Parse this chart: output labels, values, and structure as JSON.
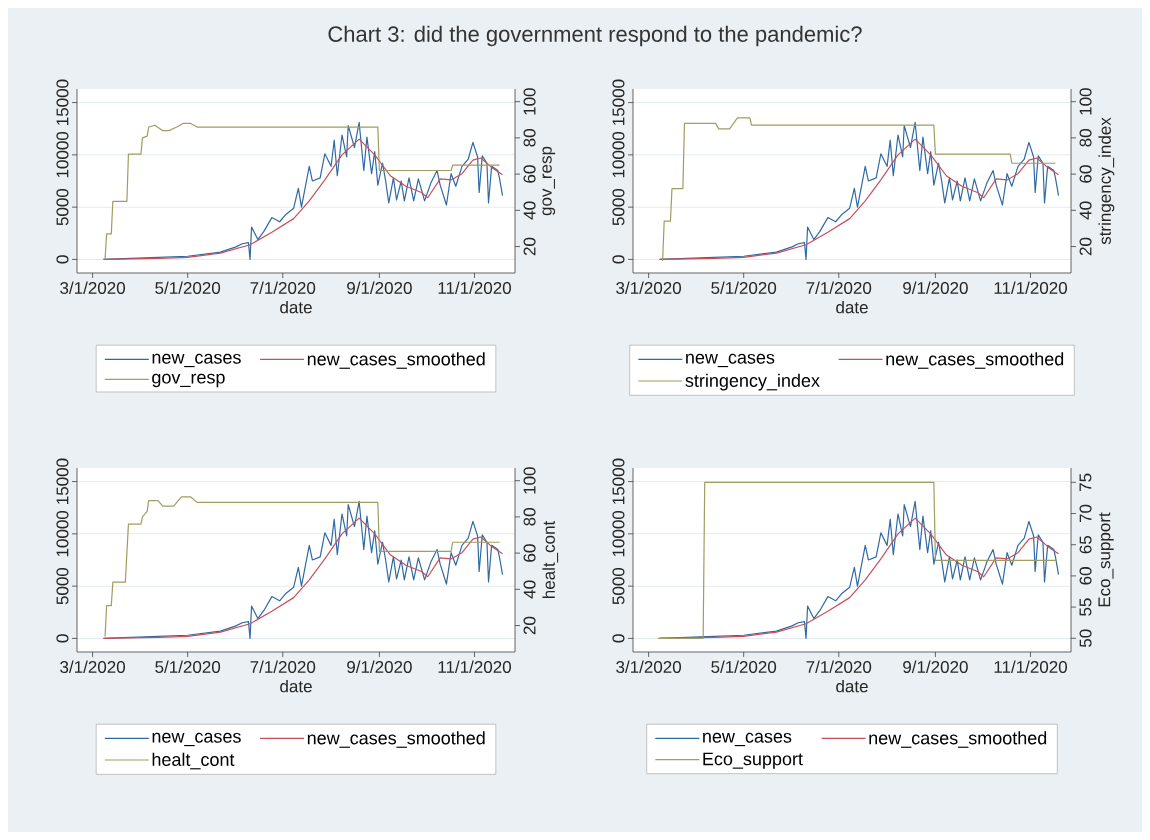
{
  "chart_data": [
    {
      "type": "line",
      "title": "Chart 3: did the government respond to the pandemic?",
      "xlabel": "date",
      "y2label": "gov_resp",
      "xlim": [
        "2020-02-20",
        "2020-11-27"
      ],
      "xticks": [
        {
          "value": "2020-03-01",
          "label": "3/1/2020"
        },
        {
          "value": "2020-05-01",
          "label": "5/1/2020"
        },
        {
          "value": "2020-07-01",
          "label": "7/1/2020"
        },
        {
          "value": "2020-09-01",
          "label": "9/1/2020"
        },
        {
          "value": "2020-11-01",
          "label": "11/1/2020"
        }
      ],
      "ylim": [
        -1300,
        16300
      ],
      "yticks": [
        0,
        5000,
        10000,
        15000
      ],
      "y2lim": [
        5.4,
        107
      ],
      "y2ticks": [
        20,
        40,
        60,
        80,
        100
      ],
      "grid": "y",
      "legend": "bottom",
      "series": [
        {
          "name": "new_cases",
          "color": "#2f6aa3",
          "x": [
            "2020-03-08",
            "2020-04-12",
            "2020-05-01",
            "2020-05-22",
            "2020-06-01",
            "2020-06-05",
            "2020-06-09",
            "2020-06-10",
            "2020-06-11",
            "2020-06-15",
            "2020-06-19",
            "2020-06-24",
            "2020-06-29",
            "2020-07-03",
            "2020-07-08",
            "2020-07-11",
            "2020-07-13",
            "2020-07-18",
            "2020-07-20",
            "2020-07-25",
            "2020-07-28",
            "2020-08-01",
            "2020-08-03",
            "2020-08-05",
            "2020-08-08",
            "2020-08-11",
            "2020-08-12",
            "2020-08-16",
            "2020-08-19",
            "2020-08-22",
            "2020-08-24",
            "2020-08-27",
            "2020-08-29",
            "2020-08-31",
            "2020-09-03",
            "2020-09-05",
            "2020-09-07",
            "2020-09-10",
            "2020-09-12",
            "2020-09-15",
            "2020-09-17",
            "2020-09-20",
            "2020-09-23",
            "2020-09-26",
            "2020-09-30",
            "2020-10-04",
            "2020-10-08",
            "2020-10-10",
            "2020-10-14",
            "2020-10-17",
            "2020-10-20",
            "2020-10-24",
            "2020-10-28",
            "2020-10-31",
            "2020-11-03",
            "2020-11-04",
            "2020-11-06",
            "2020-11-09",
            "2020-11-10",
            "2020-11-12",
            "2020-11-16",
            "2020-11-17",
            "2020-11-19"
          ],
          "values": [
            0,
            200,
            300,
            700,
            1200,
            1500,
            1600,
            0,
            3100,
            1900,
            2700,
            4000,
            3600,
            4300,
            4900,
            6800,
            5000,
            8900,
            7500,
            7800,
            10100,
            8900,
            11400,
            8000,
            11900,
            9800,
            12800,
            10700,
            13100,
            8500,
            11700,
            8200,
            10300,
            7100,
            9200,
            7500,
            5400,
            7800,
            5700,
            7500,
            5600,
            7800,
            5600,
            7700,
            5600,
            7300,
            8500,
            7100,
            5200,
            8200,
            7000,
            8900,
            9600,
            11200,
            9800,
            6400,
            9900,
            9200,
            5400,
            8900,
            8500,
            7800,
            6100
          ]
        },
        {
          "name": "new_cases_smoothed",
          "color": "#c4505c",
          "x": [
            "2020-03-08",
            "2020-04-12",
            "2020-05-01",
            "2020-05-22",
            "2020-06-10",
            "2020-06-24",
            "2020-07-08",
            "2020-07-18",
            "2020-07-28",
            "2020-08-08",
            "2020-08-19",
            "2020-08-29",
            "2020-09-08",
            "2020-09-18",
            "2020-09-28",
            "2020-10-02",
            "2020-10-10",
            "2020-10-17",
            "2020-10-24",
            "2020-10-31",
            "2020-11-05",
            "2020-11-12",
            "2020-11-19"
          ],
          "values": [
            0,
            100,
            200,
            600,
            1400,
            2600,
            3900,
            5600,
            7600,
            10000,
            11500,
            10000,
            8000,
            7000,
            6400,
            5900,
            7700,
            7600,
            8200,
            9500,
            9700,
            8800,
            8100
          ]
        },
        {
          "name": "gov_resp",
          "color": "#a09c62",
          "axis": "y2",
          "x": [
            "2020-03-09",
            "2020-03-10",
            "2020-03-13",
            "2020-03-14",
            "2020-03-23",
            "2020-03-24",
            "2020-04-01",
            "2020-04-02",
            "2020-04-05",
            "2020-04-06",
            "2020-04-10",
            "2020-04-15",
            "2020-04-19",
            "2020-04-24",
            "2020-04-28",
            "2020-05-03",
            "2020-05-07",
            "2020-08-31",
            "2020-09-01",
            "2020-10-17",
            "2020-10-18",
            "2020-11-17"
          ],
          "values": [
            13,
            27,
            27,
            45,
            45,
            71,
            71,
            80,
            81,
            86,
            87,
            84,
            84,
            86,
            88,
            88,
            86,
            86,
            62,
            62,
            65,
            65
          ]
        }
      ]
    },
    {
      "type": "line",
      "xlabel": "date",
      "y2label": "stringency_index",
      "xlim": [
        "2020-02-20",
        "2020-11-27"
      ],
      "xticks": [
        {
          "value": "2020-03-01",
          "label": "3/1/2020"
        },
        {
          "value": "2020-05-01",
          "label": "5/1/2020"
        },
        {
          "value": "2020-07-01",
          "label": "7/1/2020"
        },
        {
          "value": "2020-09-01",
          "label": "9/1/2020"
        },
        {
          "value": "2020-11-01",
          "label": "11/1/2020"
        }
      ],
      "ylim": [
        -1300,
        16300
      ],
      "yticks": [
        0,
        5000,
        10000,
        15000
      ],
      "y2lim": [
        5.4,
        107
      ],
      "y2ticks": [
        20,
        40,
        60,
        80,
        100
      ],
      "grid": "y",
      "legend": "bottom",
      "series": [
        {
          "name": "new_cases",
          "color": "#2f6aa3",
          "x": [
            "2020-03-08",
            "2020-04-12",
            "2020-05-01",
            "2020-05-22",
            "2020-06-01",
            "2020-06-05",
            "2020-06-09",
            "2020-06-10",
            "2020-06-11",
            "2020-06-15",
            "2020-06-19",
            "2020-06-24",
            "2020-06-29",
            "2020-07-03",
            "2020-07-08",
            "2020-07-11",
            "2020-07-13",
            "2020-07-18",
            "2020-07-20",
            "2020-07-25",
            "2020-07-28",
            "2020-08-01",
            "2020-08-03",
            "2020-08-05",
            "2020-08-08",
            "2020-08-11",
            "2020-08-12",
            "2020-08-16",
            "2020-08-19",
            "2020-08-22",
            "2020-08-24",
            "2020-08-27",
            "2020-08-29",
            "2020-08-31",
            "2020-09-03",
            "2020-09-05",
            "2020-09-07",
            "2020-09-10",
            "2020-09-12",
            "2020-09-15",
            "2020-09-17",
            "2020-09-20",
            "2020-09-23",
            "2020-09-26",
            "2020-09-30",
            "2020-10-04",
            "2020-10-08",
            "2020-10-10",
            "2020-10-14",
            "2020-10-17",
            "2020-10-20",
            "2020-10-24",
            "2020-10-28",
            "2020-10-31",
            "2020-11-03",
            "2020-11-04",
            "2020-11-06",
            "2020-11-09",
            "2020-11-10",
            "2020-11-12",
            "2020-11-16",
            "2020-11-17",
            "2020-11-19"
          ],
          "values": [
            0,
            200,
            300,
            700,
            1200,
            1500,
            1600,
            0,
            3100,
            1900,
            2700,
            4000,
            3600,
            4300,
            4900,
            6800,
            5000,
            8900,
            7500,
            7800,
            10100,
            8900,
            11400,
            8000,
            11900,
            9800,
            12800,
            10700,
            13100,
            8500,
            11700,
            8200,
            10300,
            7100,
            9200,
            7500,
            5400,
            7800,
            5700,
            7500,
            5600,
            7800,
            5600,
            7700,
            5600,
            7300,
            8500,
            7100,
            5200,
            8200,
            7000,
            8900,
            9600,
            11200,
            9800,
            6400,
            9900,
            9200,
            5400,
            8900,
            8500,
            7800,
            6100
          ]
        },
        {
          "name": "new_cases_smoothed",
          "color": "#c4505c",
          "x": [
            "2020-03-08",
            "2020-04-12",
            "2020-05-01",
            "2020-05-22",
            "2020-06-10",
            "2020-06-24",
            "2020-07-08",
            "2020-07-18",
            "2020-07-28",
            "2020-08-08",
            "2020-08-19",
            "2020-08-29",
            "2020-09-08",
            "2020-09-18",
            "2020-09-28",
            "2020-10-02",
            "2020-10-10",
            "2020-10-17",
            "2020-10-24",
            "2020-10-31",
            "2020-11-05",
            "2020-11-12",
            "2020-11-19"
          ],
          "values": [
            0,
            100,
            200,
            600,
            1400,
            2600,
            3900,
            5600,
            7600,
            10000,
            11500,
            10000,
            8000,
            7000,
            6400,
            5900,
            7700,
            7600,
            8200,
            9500,
            9700,
            8800,
            8100
          ]
        },
        {
          "name": "stringency_index",
          "color": "#a09c62",
          "axis": "y2",
          "x": [
            "2020-03-10",
            "2020-03-11",
            "2020-03-15",
            "2020-03-16",
            "2020-03-23",
            "2020-03-24",
            "2020-04-13",
            "2020-04-15",
            "2020-04-22",
            "2020-04-27",
            "2020-05-05",
            "2020-05-06",
            "2020-08-31",
            "2020-09-01",
            "2020-10-19",
            "2020-10-20",
            "2020-11-17"
          ],
          "values": [
            12,
            34,
            34,
            52,
            52,
            88,
            88,
            85,
            85,
            91,
            91,
            87,
            87,
            71,
            71,
            66,
            66
          ]
        }
      ]
    },
    {
      "type": "line",
      "xlabel": "date",
      "y2label": "healt_cont",
      "xlim": [
        "2020-02-20",
        "2020-11-27"
      ],
      "xticks": [
        {
          "value": "2020-03-01",
          "label": "3/1/2020"
        },
        {
          "value": "2020-05-01",
          "label": "5/1/2020"
        },
        {
          "value": "2020-07-01",
          "label": "7/1/2020"
        },
        {
          "value": "2020-09-01",
          "label": "9/1/2020"
        },
        {
          "value": "2020-11-01",
          "label": "11/1/2020"
        }
      ],
      "ylim": [
        -1300,
        16300
      ],
      "yticks": [
        0,
        5000,
        10000,
        15000
      ],
      "y2lim": [
        5.4,
        107
      ],
      "y2ticks": [
        20,
        40,
        60,
        80,
        100
      ],
      "grid": "y",
      "legend": "bottom",
      "series": [
        {
          "name": "new_cases",
          "color": "#2f6aa3",
          "x": [
            "2020-03-08",
            "2020-04-12",
            "2020-05-01",
            "2020-05-22",
            "2020-06-01",
            "2020-06-05",
            "2020-06-09",
            "2020-06-10",
            "2020-06-11",
            "2020-06-15",
            "2020-06-19",
            "2020-06-24",
            "2020-06-29",
            "2020-07-03",
            "2020-07-08",
            "2020-07-11",
            "2020-07-13",
            "2020-07-18",
            "2020-07-20",
            "2020-07-25",
            "2020-07-28",
            "2020-08-01",
            "2020-08-03",
            "2020-08-05",
            "2020-08-08",
            "2020-08-11",
            "2020-08-12",
            "2020-08-16",
            "2020-08-19",
            "2020-08-22",
            "2020-08-24",
            "2020-08-27",
            "2020-08-29",
            "2020-08-31",
            "2020-09-03",
            "2020-09-05",
            "2020-09-07",
            "2020-09-10",
            "2020-09-12",
            "2020-09-15",
            "2020-09-17",
            "2020-09-20",
            "2020-09-23",
            "2020-09-26",
            "2020-09-30",
            "2020-10-04",
            "2020-10-08",
            "2020-10-10",
            "2020-10-14",
            "2020-10-17",
            "2020-10-20",
            "2020-10-24",
            "2020-10-28",
            "2020-10-31",
            "2020-11-03",
            "2020-11-04",
            "2020-11-06",
            "2020-11-09",
            "2020-11-10",
            "2020-11-12",
            "2020-11-16",
            "2020-11-17",
            "2020-11-19"
          ],
          "values": [
            0,
            200,
            300,
            700,
            1200,
            1500,
            1600,
            0,
            3100,
            1900,
            2700,
            4000,
            3600,
            4300,
            4900,
            6800,
            5000,
            8900,
            7500,
            7800,
            10100,
            8900,
            11400,
            8000,
            11900,
            9800,
            12800,
            10700,
            13100,
            8500,
            11700,
            8200,
            10300,
            7100,
            9200,
            7500,
            5400,
            7800,
            5700,
            7500,
            5600,
            7800,
            5600,
            7700,
            5600,
            7300,
            8500,
            7100,
            5200,
            8200,
            7000,
            8900,
            9600,
            11200,
            9800,
            6400,
            9900,
            9200,
            5400,
            8900,
            8500,
            7800,
            6100
          ]
        },
        {
          "name": "new_cases_smoothed",
          "color": "#c4505c",
          "x": [
            "2020-03-08",
            "2020-04-12",
            "2020-05-01",
            "2020-05-22",
            "2020-06-10",
            "2020-06-24",
            "2020-07-08",
            "2020-07-18",
            "2020-07-28",
            "2020-08-08",
            "2020-08-19",
            "2020-08-29",
            "2020-09-08",
            "2020-09-18",
            "2020-09-28",
            "2020-10-02",
            "2020-10-10",
            "2020-10-17",
            "2020-10-24",
            "2020-10-31",
            "2020-11-05",
            "2020-11-12",
            "2020-11-19"
          ],
          "values": [
            0,
            100,
            200,
            600,
            1400,
            2600,
            3900,
            5600,
            7600,
            10000,
            11500,
            10000,
            8000,
            7000,
            6400,
            5900,
            7700,
            7600,
            8200,
            9500,
            9700,
            8800,
            8100
          ]
        },
        {
          "name": "healt_cont",
          "color": "#a09c62",
          "axis": "y2",
          "x": [
            "2020-03-09",
            "2020-03-10",
            "2020-03-13",
            "2020-03-14",
            "2020-03-22",
            "2020-03-24",
            "2020-04-01",
            "2020-04-02",
            "2020-04-05",
            "2020-04-06",
            "2020-04-12",
            "2020-04-15",
            "2020-04-22",
            "2020-04-27",
            "2020-05-03",
            "2020-05-07",
            "2020-08-31",
            "2020-09-01",
            "2020-10-17",
            "2020-10-18",
            "2020-11-17"
          ],
          "values": [
            14,
            31,
            31,
            44,
            44,
            76,
            76,
            80,
            83,
            89,
            89,
            86,
            86,
            91,
            91,
            88,
            88,
            61,
            61,
            66,
            66
          ]
        }
      ]
    },
    {
      "type": "line",
      "xlabel": "date",
      "y2label": "Eco_support",
      "xlim": [
        "2020-02-20",
        "2020-11-27"
      ],
      "xticks": [
        {
          "value": "2020-03-01",
          "label": "3/1/2020"
        },
        {
          "value": "2020-05-01",
          "label": "5/1/2020"
        },
        {
          "value": "2020-07-01",
          "label": "7/1/2020"
        },
        {
          "value": "2020-09-01",
          "label": "9/1/2020"
        },
        {
          "value": "2020-11-01",
          "label": "11/1/2020"
        }
      ],
      "ylim": [
        -1300,
        16300
      ],
      "yticks": [
        0,
        5000,
        10000,
        15000
      ],
      "y2lim": [
        47.8,
        77.3
      ],
      "y2ticks": [
        50,
        55,
        60,
        65,
        70,
        75
      ],
      "grid": "y",
      "legend": "bottom",
      "series": [
        {
          "name": "new_cases",
          "color": "#2f6aa3",
          "x": [
            "2020-03-08",
            "2020-04-12",
            "2020-05-01",
            "2020-05-22",
            "2020-06-01",
            "2020-06-05",
            "2020-06-09",
            "2020-06-10",
            "2020-06-11",
            "2020-06-15",
            "2020-06-19",
            "2020-06-24",
            "2020-06-29",
            "2020-07-03",
            "2020-07-08",
            "2020-07-11",
            "2020-07-13",
            "2020-07-18",
            "2020-07-20",
            "2020-07-25",
            "2020-07-28",
            "2020-08-01",
            "2020-08-03",
            "2020-08-05",
            "2020-08-08",
            "2020-08-11",
            "2020-08-12",
            "2020-08-16",
            "2020-08-19",
            "2020-08-22",
            "2020-08-24",
            "2020-08-27",
            "2020-08-29",
            "2020-08-31",
            "2020-09-03",
            "2020-09-05",
            "2020-09-07",
            "2020-09-10",
            "2020-09-12",
            "2020-09-15",
            "2020-09-17",
            "2020-09-20",
            "2020-09-23",
            "2020-09-26",
            "2020-09-30",
            "2020-10-04",
            "2020-10-08",
            "2020-10-10",
            "2020-10-14",
            "2020-10-17",
            "2020-10-20",
            "2020-10-24",
            "2020-10-28",
            "2020-10-31",
            "2020-11-03",
            "2020-11-04",
            "2020-11-06",
            "2020-11-09",
            "2020-11-10",
            "2020-11-12",
            "2020-11-16",
            "2020-11-17",
            "2020-11-19"
          ],
          "values": [
            0,
            200,
            300,
            700,
            1200,
            1500,
            1600,
            0,
            3100,
            1900,
            2700,
            4000,
            3600,
            4300,
            4900,
            6800,
            5000,
            8900,
            7500,
            7800,
            10100,
            8900,
            11400,
            8000,
            11900,
            9800,
            12800,
            10700,
            13100,
            8500,
            11700,
            8200,
            10300,
            7100,
            9200,
            7500,
            5400,
            7800,
            5700,
            7500,
            5600,
            7800,
            5600,
            7700,
            5600,
            7300,
            8500,
            7100,
            5200,
            8200,
            7000,
            8900,
            9600,
            11200,
            9800,
            6400,
            9900,
            9200,
            5400,
            8900,
            8500,
            7800,
            6100
          ]
        },
        {
          "name": "new_cases_smoothed",
          "color": "#c4505c",
          "x": [
            "2020-03-08",
            "2020-04-12",
            "2020-05-01",
            "2020-05-22",
            "2020-06-10",
            "2020-06-24",
            "2020-07-08",
            "2020-07-18",
            "2020-07-28",
            "2020-08-08",
            "2020-08-19",
            "2020-08-29",
            "2020-09-08",
            "2020-09-18",
            "2020-09-28",
            "2020-10-02",
            "2020-10-10",
            "2020-10-17",
            "2020-10-24",
            "2020-10-31",
            "2020-11-05",
            "2020-11-12",
            "2020-11-19"
          ],
          "values": [
            0,
            100,
            200,
            600,
            1400,
            2600,
            3900,
            5600,
            7600,
            10000,
            11500,
            10000,
            8000,
            7000,
            6400,
            5900,
            7700,
            7600,
            8200,
            9500,
            9700,
            8800,
            8100
          ]
        },
        {
          "name": "Eco_support",
          "color": "#a09c62",
          "axis": "y2",
          "x": [
            "2020-03-07",
            "2020-04-05",
            "2020-04-06",
            "2020-08-31",
            "2020-09-01",
            "2020-11-18"
          ],
          "values": [
            50,
            50,
            75,
            75,
            62.5,
            62.5
          ]
        }
      ]
    }
  ]
}
